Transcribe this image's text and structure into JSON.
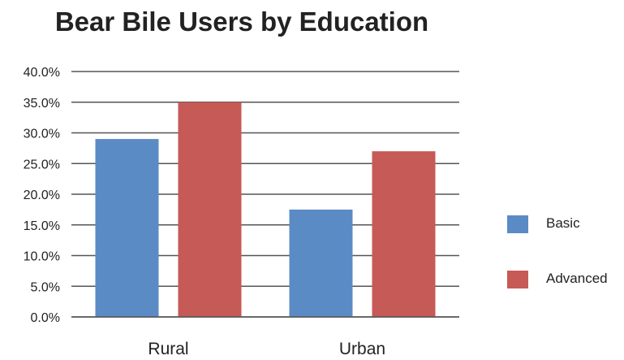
{
  "chart_data": {
    "type": "bar",
    "title": "Bear Bile Users by Education",
    "categories": [
      "Rural",
      "Urban"
    ],
    "series": [
      {
        "name": "Basic",
        "values": [
          29.0,
          17.5
        ],
        "color": "#5b8bc5"
      },
      {
        "name": "Advanced",
        "values": [
          35.0,
          27.0
        ],
        "color": "#c65a56"
      }
    ],
    "ylim": [
      0,
      40
    ],
    "yticks": [
      "0.0%",
      "5.0%",
      "10.0%",
      "15.0%",
      "20.0%",
      "25.0%",
      "30.0%",
      "35.0%",
      "40.0%"
    ],
    "xlabel": "",
    "ylabel": "",
    "grid": true,
    "legend_position": "right"
  }
}
